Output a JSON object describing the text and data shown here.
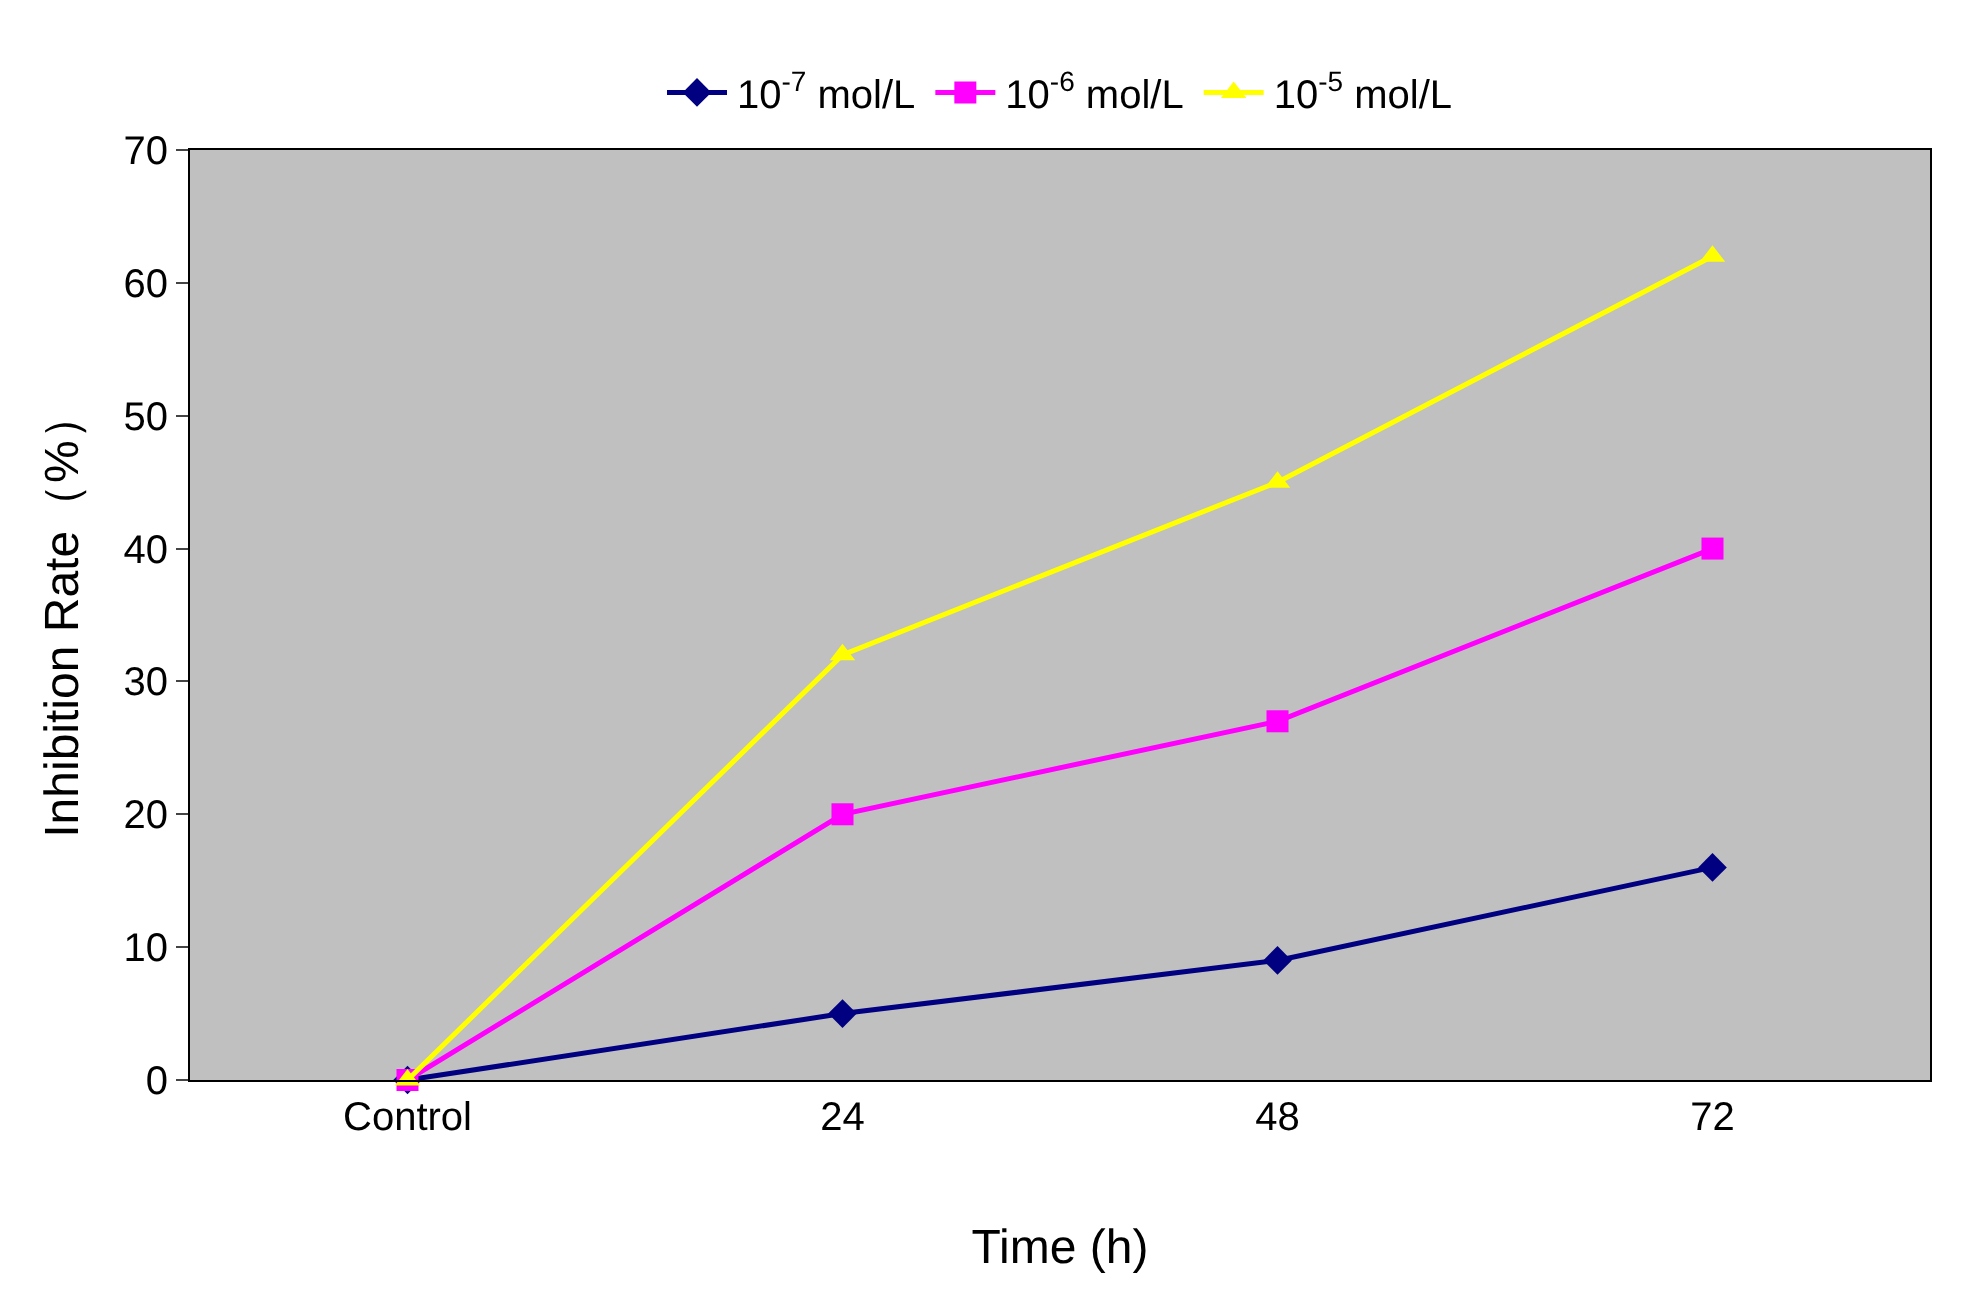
{
  "chart_data": {
    "type": "line",
    "xlabel": "Time (h)",
    "ylabel": "Inhibition Rate（%）",
    "categories": [
      "Control",
      "24",
      "48",
      "72"
    ],
    "series": [
      {
        "name": "10$^{-7}$ mol/L",
        "color": "#000080",
        "marker": "diamond",
        "values": [
          0,
          5,
          9,
          16
        ]
      },
      {
        "name": "10$^{-6}$ mol/L",
        "color": "#ff00ff",
        "marker": "square",
        "values": [
          0,
          20,
          27,
          40
        ]
      },
      {
        "name": "10$^{-5}$ mol/L",
        "color": "#ffff00",
        "marker": "triangle",
        "values": [
          0,
          32,
          45,
          62
        ]
      }
    ],
    "ylim": [
      0,
      70
    ],
    "yticks": [
      0,
      10,
      20,
      30,
      40,
      50,
      60,
      70
    ],
    "grid": false,
    "legend": "top"
  }
}
